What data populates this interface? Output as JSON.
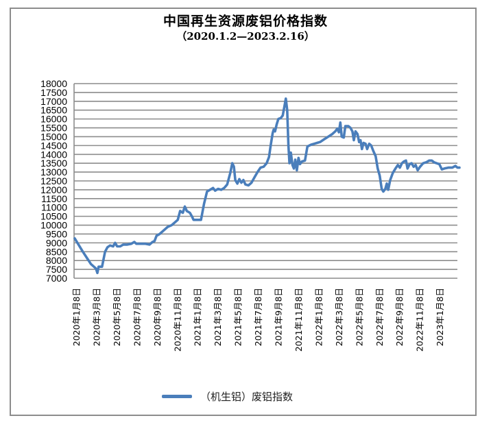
{
  "chart_data": {
    "type": "line",
    "title": "中国再生资源废铝价格指数",
    "subtitle": "（2020.1.2—2023.2.16）",
    "xlabel": "",
    "ylabel": "",
    "ylim": [
      7000,
      18000
    ],
    "ytick_step": 500,
    "yticks": [
      7000,
      7500,
      8000,
      8500,
      9000,
      9500,
      10000,
      10500,
      11000,
      11500,
      12000,
      12500,
      13000,
      13500,
      14000,
      14500,
      15000,
      15500,
      16000,
      16500,
      17000,
      17500,
      18000
    ],
    "grid": true,
    "legend_position": "bottom",
    "line_color": "#4a7ebb",
    "categories": [
      "2020年1月8日",
      "2020年3月8日",
      "2020年5月8日",
      "2020年7月8日",
      "2020年9月8日",
      "2020年11月8日",
      "2021年1月8日",
      "2021年3月8日",
      "2021年5月8日",
      "2021年7月8日",
      "2021年9月8日",
      "2021年11月8日",
      "2022年1月8日",
      "2022年3月8日",
      "2022年5月8日",
      "2022年7月8日",
      "2022年9月8日",
      "2022年11月8日",
      "2023年1月8日"
    ],
    "series": [
      {
        "name": "（机生铝）废铝指数",
        "points": [
          [
            0.0,
            9250
          ],
          [
            0.4,
            8500
          ],
          [
            0.8,
            7800
          ],
          [
            1.05,
            7550
          ],
          [
            1.12,
            7300
          ],
          [
            1.18,
            7650
          ],
          [
            1.35,
            7650
          ],
          [
            1.5,
            8500
          ],
          [
            1.62,
            8750
          ],
          [
            1.75,
            8850
          ],
          [
            1.9,
            8800
          ],
          [
            2.0,
            9000
          ],
          [
            2.1,
            8800
          ],
          [
            2.25,
            8800
          ],
          [
            2.4,
            8900
          ],
          [
            2.6,
            8900
          ],
          [
            2.8,
            8950
          ],
          [
            2.95,
            9050
          ],
          [
            3.05,
            8950
          ],
          [
            3.3,
            8950
          ],
          [
            3.5,
            8950
          ],
          [
            3.7,
            8900
          ],
          [
            3.85,
            9050
          ],
          [
            3.95,
            9100
          ],
          [
            4.05,
            9400
          ],
          [
            4.2,
            9500
          ],
          [
            4.4,
            9700
          ],
          [
            4.6,
            9900
          ],
          [
            4.8,
            10000
          ],
          [
            4.95,
            10150
          ],
          [
            5.1,
            10300
          ],
          [
            5.22,
            10800
          ],
          [
            5.35,
            10700
          ],
          [
            5.45,
            11050
          ],
          [
            5.55,
            10800
          ],
          [
            5.7,
            10700
          ],
          [
            5.8,
            10500
          ],
          [
            5.88,
            10300
          ],
          [
            6.0,
            10300
          ],
          [
            6.25,
            10300
          ],
          [
            6.4,
            11200
          ],
          [
            6.55,
            11900
          ],
          [
            6.7,
            12000
          ],
          [
            6.85,
            12100
          ],
          [
            6.95,
            11950
          ],
          [
            7.1,
            12050
          ],
          [
            7.25,
            12000
          ],
          [
            7.4,
            12100
          ],
          [
            7.55,
            12300
          ],
          [
            7.7,
            12950
          ],
          [
            7.8,
            13500
          ],
          [
            7.88,
            13300
          ],
          [
            7.95,
            12550
          ],
          [
            8.05,
            12350
          ],
          [
            8.15,
            12600
          ],
          [
            8.25,
            12400
          ],
          [
            8.35,
            12550
          ],
          [
            8.45,
            12300
          ],
          [
            8.6,
            12250
          ],
          [
            8.75,
            12400
          ],
          [
            8.9,
            12700
          ],
          [
            9.05,
            13000
          ],
          [
            9.2,
            13250
          ],
          [
            9.35,
            13300
          ],
          [
            9.5,
            13500
          ],
          [
            9.62,
            13850
          ],
          [
            9.7,
            14500
          ],
          [
            9.8,
            15200
          ],
          [
            9.85,
            15400
          ],
          [
            9.92,
            15300
          ],
          [
            10.0,
            15700
          ],
          [
            10.08,
            16000
          ],
          [
            10.2,
            16050
          ],
          [
            10.3,
            16200
          ],
          [
            10.38,
            16700
          ],
          [
            10.45,
            17150
          ],
          [
            10.52,
            16500
          ],
          [
            10.58,
            14500
          ],
          [
            10.63,
            13500
          ],
          [
            10.7,
            14100
          ],
          [
            10.78,
            13400
          ],
          [
            10.85,
            13200
          ],
          [
            10.92,
            13700
          ],
          [
            11.0,
            13100
          ],
          [
            11.08,
            13800
          ],
          [
            11.15,
            13450
          ],
          [
            11.25,
            13600
          ],
          [
            11.4,
            13650
          ],
          [
            11.52,
            14450
          ],
          [
            11.7,
            14550
          ],
          [
            11.85,
            14600
          ],
          [
            12.0,
            14650
          ],
          [
            12.15,
            14700
          ],
          [
            12.35,
            14850
          ],
          [
            12.55,
            15000
          ],
          [
            12.75,
            15150
          ],
          [
            12.9,
            15300
          ],
          [
            13.0,
            15450
          ],
          [
            13.08,
            15250
          ],
          [
            13.15,
            15800
          ],
          [
            13.22,
            15000
          ],
          [
            13.32,
            14950
          ],
          [
            13.4,
            15600
          ],
          [
            13.55,
            15600
          ],
          [
            13.65,
            15500
          ],
          [
            13.75,
            15300
          ],
          [
            13.82,
            14800
          ],
          [
            13.9,
            15300
          ],
          [
            14.0,
            15150
          ],
          [
            14.08,
            14700
          ],
          [
            14.15,
            14800
          ],
          [
            14.22,
            14300
          ],
          [
            14.3,
            14650
          ],
          [
            14.4,
            14600
          ],
          [
            14.48,
            14300
          ],
          [
            14.58,
            14600
          ],
          [
            14.68,
            14500
          ],
          [
            14.78,
            14200
          ],
          [
            14.9,
            13900
          ],
          [
            15.0,
            13200
          ],
          [
            15.1,
            12800
          ],
          [
            15.2,
            12050
          ],
          [
            15.28,
            11900
          ],
          [
            15.38,
            12050
          ],
          [
            15.45,
            12350
          ],
          [
            15.52,
            12000
          ],
          [
            15.62,
            12550
          ],
          [
            15.75,
            12950
          ],
          [
            15.88,
            13200
          ],
          [
            16.0,
            13400
          ],
          [
            16.1,
            13250
          ],
          [
            16.2,
            13500
          ],
          [
            16.3,
            13600
          ],
          [
            16.4,
            13650
          ],
          [
            16.48,
            13200
          ],
          [
            16.58,
            13450
          ],
          [
            16.68,
            13500
          ],
          [
            16.78,
            13300
          ],
          [
            16.88,
            13400
          ],
          [
            16.98,
            13100
          ],
          [
            17.1,
            13300
          ],
          [
            17.25,
            13500
          ],
          [
            17.4,
            13550
          ],
          [
            17.55,
            13650
          ],
          [
            17.68,
            13650
          ],
          [
            17.8,
            13550
          ],
          [
            17.92,
            13500
          ],
          [
            18.05,
            13450
          ],
          [
            18.18,
            13150
          ],
          [
            18.3,
            13200
          ],
          [
            18.5,
            13250
          ],
          [
            18.7,
            13250
          ],
          [
            18.85,
            13350
          ],
          [
            18.95,
            13250
          ],
          [
            19.05,
            13250
          ]
        ]
      }
    ]
  },
  "legend": {
    "label": "（机生铝）废铝指数"
  }
}
